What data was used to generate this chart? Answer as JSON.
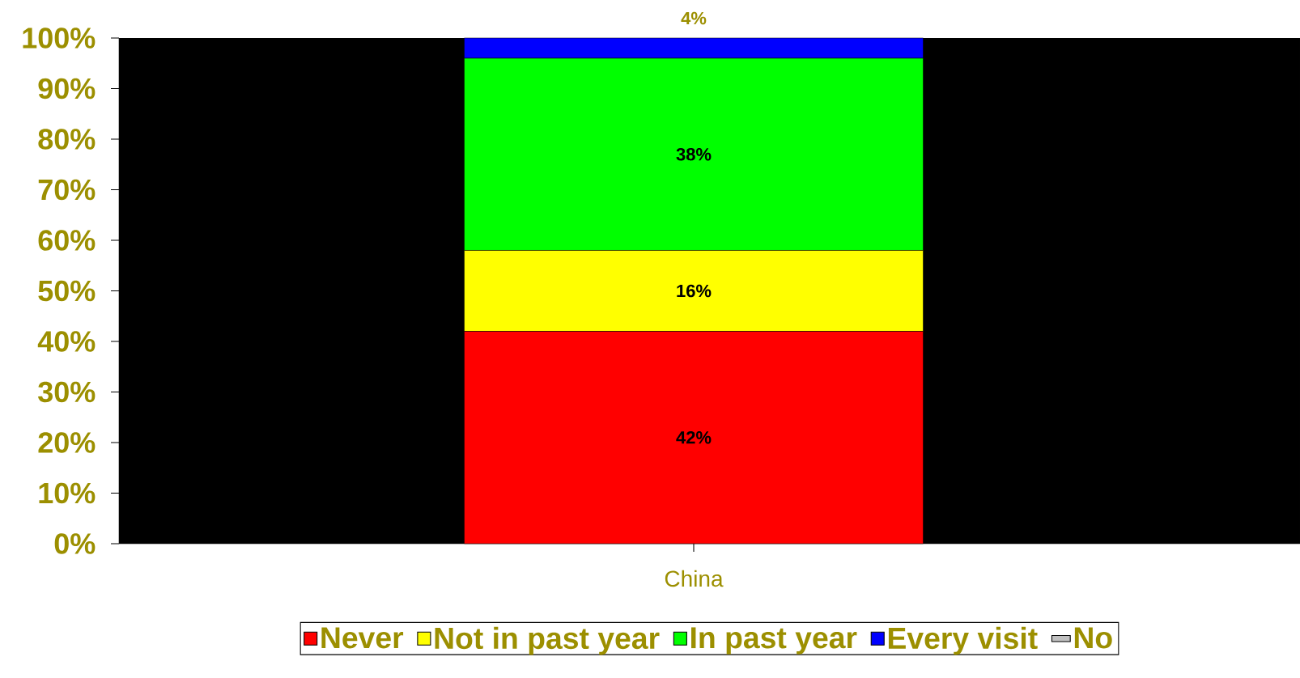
{
  "chart_data": {
    "type": "bar",
    "stacked": true,
    "categories": [
      "China"
    ],
    "series": [
      {
        "name": "Never",
        "color": "#ff0000",
        "values": [
          42
        ],
        "value_labels": [
          "42%"
        ]
      },
      {
        "name": "Not in past year",
        "color": "#ffff00",
        "values": [
          16
        ],
        "value_labels": [
          "16%"
        ]
      },
      {
        "name": "In past year",
        "color": "#00ff00",
        "values": [
          38
        ],
        "value_labels": [
          "38%"
        ]
      },
      {
        "name": "Every visit",
        "color": "#0000ff",
        "values": [
          4
        ],
        "value_labels": [
          "4%"
        ]
      },
      {
        "name": "No",
        "color": "#c0c0c0",
        "values": [
          null
        ],
        "value_labels": [
          null
        ]
      }
    ],
    "ylim": [
      0,
      100
    ],
    "yticks": [
      {
        "value": 0,
        "label": "0%"
      },
      {
        "value": 10,
        "label": "10%"
      },
      {
        "value": 20,
        "label": "20%"
      },
      {
        "value": 30,
        "label": "30%"
      },
      {
        "value": 40,
        "label": "40%"
      },
      {
        "value": 50,
        "label": "50%"
      },
      {
        "value": 60,
        "label": "60%"
      },
      {
        "value": 70,
        "label": "70%"
      },
      {
        "value": 80,
        "label": "80%"
      },
      {
        "value": 90,
        "label": "90%"
      },
      {
        "value": 100,
        "label": "100%"
      }
    ],
    "grid": false,
    "legend": "bottom"
  }
}
